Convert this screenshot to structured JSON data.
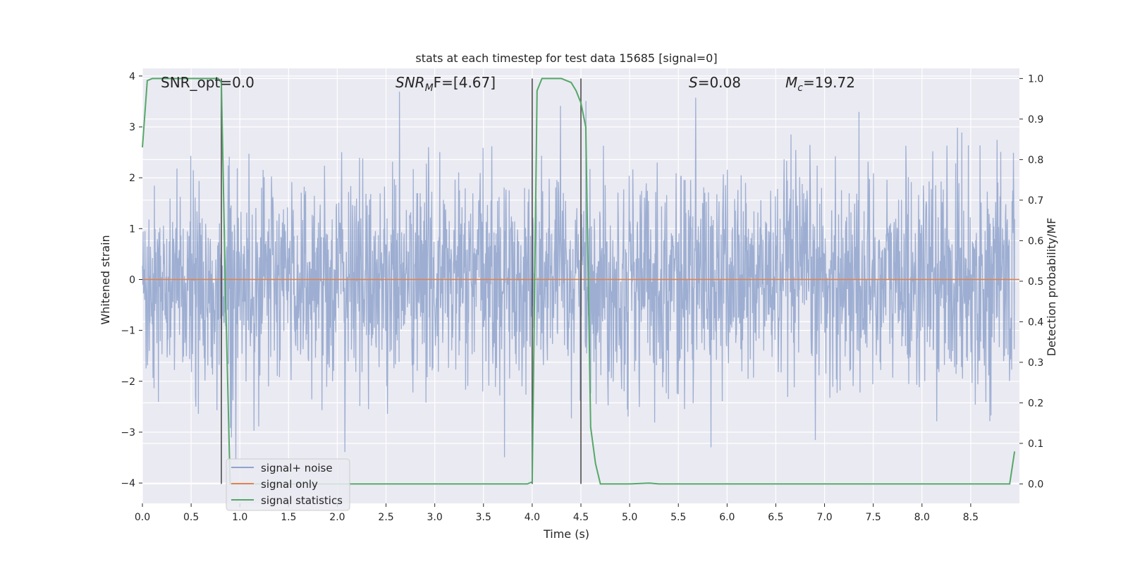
{
  "chart_data": {
    "type": "line",
    "title": "stats at each timestep for test data 15685 [signal=0]",
    "xlabel": "Time (s)",
    "ylabel_left": "Whitened strain",
    "ylabel_right": "Detection probability/MF",
    "xlim": [
      0.0,
      9.0
    ],
    "ylim_left": [
      -4.4,
      4.15
    ],
    "ylim_right": [
      -0.048,
      1.025
    ],
    "x_ticks": [
      "0.0",
      "0.5",
      "1.0",
      "1.5",
      "2.0",
      "2.5",
      "3.0",
      "3.5",
      "4.0",
      "4.5",
      "5.0",
      "5.5",
      "6.0",
      "6.5",
      "7.0",
      "7.5",
      "8.0",
      "8.5"
    ],
    "y_ticks_left": [
      "4",
      "3",
      "2",
      "1",
      "0",
      "−1",
      "−2",
      "−3",
      "−4"
    ],
    "y_ticks_right": [
      "1.0",
      "0.9",
      "0.8",
      "0.7",
      "0.6",
      "0.5",
      "0.4",
      "0.3",
      "0.2",
      "0.1",
      "0.0"
    ],
    "grid": true,
    "annotations": {
      "snr_opt": "SNR_opt=0.0",
      "snr_mf_base": "SNR",
      "snr_mf_sub": "M",
      "snr_mf_rest": "F=[4.67]",
      "s_italic": "S",
      "s_rest": "=0.08",
      "mc_base": "M",
      "mc_sub": "c",
      "mc_rest": "=19.72"
    },
    "legend": {
      "placement": "lower-left",
      "items": [
        "signal+ noise",
        "signal only",
        "signal statistics"
      ]
    },
    "colors": {
      "plot_bg": "#eaeaf2",
      "grid": "#ffffff",
      "noise": "#8fa3cc",
      "signal_only": "#dd8452",
      "statistics": "#55a868",
      "vline": "#4d4d4d"
    },
    "series": [
      {
        "name": "signal+ noise",
        "axis": "left",
        "description_range": [
          -4.0,
          3.8
        ],
        "typical_envelope": [
          -2.2,
          2.2
        ]
      },
      {
        "name": "signal only",
        "axis": "left",
        "x": [
          0.0,
          9.0
        ],
        "y": [
          0.0,
          0.0
        ]
      },
      {
        "name": "signal statistics",
        "axis": "right",
        "x": [
          0.0,
          0.05,
          0.1,
          0.2,
          0.5,
          0.78,
          0.81,
          0.85,
          0.9,
          3.95,
          4.0,
          4.05,
          4.1,
          4.15,
          4.3,
          4.4,
          4.45,
          4.5,
          4.55,
          4.6,
          4.65,
          4.7,
          5.0,
          5.2,
          5.3,
          8.9,
          8.95
        ],
        "y": [
          0.83,
          0.995,
          1.0,
          1.0,
          1.0,
          1.0,
          0.99,
          0.5,
          0.0,
          0.0,
          0.005,
          0.97,
          1.0,
          1.0,
          1.0,
          0.99,
          0.97,
          0.94,
          0.88,
          0.14,
          0.05,
          0.0,
          0.0,
          0.002,
          0.0,
          0.0,
          0.08
        ]
      }
    ],
    "vlines": [
      0.81,
      4.0,
      4.5
    ]
  }
}
